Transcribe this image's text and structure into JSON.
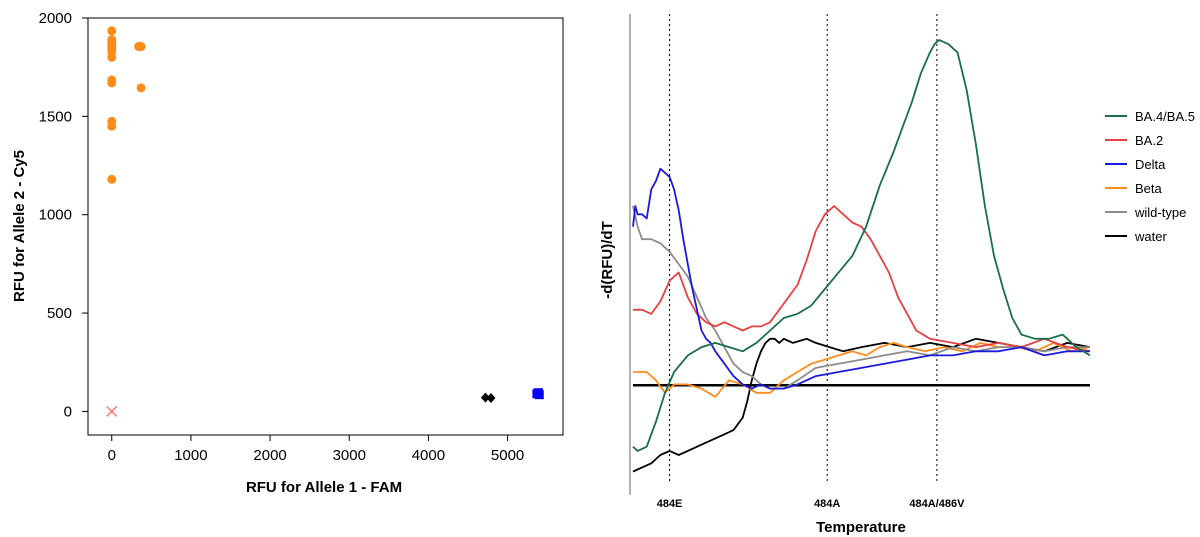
{
  "chart_data": [
    {
      "type": "scatter",
      "xlabel": "RFU for Allele 1 - FAM",
      "ylabel": "RFU for Allele 2 - Cy5",
      "xlim": [
        -300,
        5700
      ],
      "ylim": [
        -120,
        2000
      ],
      "x_ticks": [
        0,
        1000,
        2000,
        3000,
        4000,
        5000
      ],
      "y_ticks": [
        0,
        500,
        1000,
        1500,
        2000
      ],
      "grid": false,
      "series": [
        {
          "marker": "circle",
          "color": "#ff8c1a",
          "points": [
            [
              0,
              1935
            ],
            [
              0,
              1890
            ],
            [
              0,
              1870
            ],
            [
              0,
              1855
            ],
            [
              0,
              1840
            ],
            [
              0,
              1830
            ],
            [
              0,
              1800
            ],
            [
              0,
              1685
            ],
            [
              0,
              1670
            ],
            [
              0,
              1475
            ],
            [
              0,
              1450
            ],
            [
              0,
              1180
            ],
            [
              340,
              1855
            ],
            [
              370,
              1855
            ],
            [
              370,
              1645
            ]
          ]
        },
        {
          "marker": "diamond",
          "color": "#000000",
          "points": [
            [
              4720,
              70
            ],
            [
              4790,
              68
            ]
          ]
        },
        {
          "marker": "square",
          "color": "#0000ff",
          "points": [
            [
              5370,
              90
            ],
            [
              5400,
              85
            ],
            [
              5390,
              95
            ]
          ]
        },
        {
          "marker": "x",
          "color": "#ff6b6b",
          "points": [
            [
              0,
              0
            ]
          ]
        }
      ]
    },
    {
      "type": "line",
      "xlabel": "Temperature",
      "ylabel": "-d(RFU)/dT",
      "xlim": [
        0,
        100
      ],
      "ylim": [
        0,
        100
      ],
      "x_tick_labels": [],
      "y_tick_labels": [],
      "legend_position": "right",
      "vertical_markers": [
        {
          "label": "484E",
          "x": 8
        },
        {
          "label": "484A",
          "x": 42.5
        },
        {
          "label": "484A/486V",
          "x": 66.5
        }
      ],
      "baseline": 16.8,
      "series": [
        {
          "name": "BA.4/BA.5",
          "color": "#1a6e4a",
          "x": [
            0,
            1,
            3,
            5,
            7,
            9,
            12,
            15,
            18,
            21,
            24,
            27,
            30,
            33,
            36,
            39,
            42,
            45,
            48,
            51,
            54,
            57,
            59,
            61,
            63,
            65,
            66,
            67,
            68,
            69,
            71,
            73,
            75,
            77,
            79,
            81,
            83,
            85,
            88,
            91,
            94,
            97,
            100
          ],
          "y": [
            2,
            1,
            2,
            8,
            15,
            20,
            24,
            26,
            27,
            26,
            25,
            27,
            30,
            33,
            34,
            36,
            40,
            44,
            48,
            55,
            65,
            73,
            79,
            85,
            92,
            97,
            99,
            100,
            99.5,
            99,
            97,
            88,
            75,
            60,
            48,
            40,
            33,
            29,
            28,
            28,
            29,
            26,
            24
          ]
        },
        {
          "name": "BA.2",
          "color": "#e84040",
          "x": [
            0,
            2,
            4,
            6,
            8,
            10,
            12,
            14,
            16,
            18,
            20,
            22,
            24,
            26,
            28,
            30,
            32,
            34,
            36,
            38,
            40,
            42,
            44,
            46,
            48,
            50,
            52,
            54,
            56,
            58,
            60,
            62,
            65,
            70,
            75,
            80,
            85,
            90,
            95,
            100
          ],
          "y": [
            35,
            35,
            34,
            37,
            42,
            44,
            38,
            34,
            32,
            31,
            32,
            31,
            30,
            31,
            31,
            32,
            35,
            38,
            41,
            47,
            54,
            58,
            60,
            58,
            56,
            55,
            52,
            48,
            44,
            38,
            34,
            30,
            28,
            27,
            26,
            27,
            26,
            28,
            26,
            25
          ]
        },
        {
          "name": "Delta",
          "color": "#1a1adb",
          "x": [
            0,
            0.5,
            1,
            2,
            3,
            4,
            5,
            6,
            7,
            8,
            9,
            10,
            11,
            12,
            13,
            14,
            15,
            16,
            17,
            18,
            20,
            22,
            24,
            26,
            28,
            30,
            33,
            36,
            40,
            45,
            50,
            55,
            60,
            65,
            70,
            75,
            80,
            85,
            90,
            95,
            100
          ],
          "y": [
            55,
            60,
            58,
            58,
            57,
            64,
            66,
            69,
            68,
            67,
            64,
            59,
            52,
            46,
            40,
            35,
            30,
            28,
            27,
            25,
            22,
            19,
            17,
            16,
            17,
            16,
            16,
            17,
            19,
            20,
            21,
            22,
            23,
            24,
            24,
            25,
            25,
            26,
            24,
            25,
            25
          ]
        },
        {
          "name": "Beta",
          "color": "#ff8c1a",
          "x": [
            0,
            3,
            5,
            7,
            9,
            12,
            15,
            18,
            21,
            24,
            27,
            30,
            33,
            36,
            39,
            42,
            45,
            48,
            51,
            54,
            57,
            60,
            64,
            68,
            72,
            76,
            80,
            84,
            88,
            92,
            96,
            100
          ],
          "y": [
            20,
            20,
            18,
            15,
            17,
            17,
            16,
            14,
            18,
            17,
            15,
            15,
            18,
            20,
            22,
            23,
            24,
            25,
            24,
            26,
            27,
            26,
            25,
            26,
            25,
            27,
            26,
            26,
            25,
            27,
            25,
            26
          ]
        },
        {
          "name": "wild-type",
          "color": "#8c8c8c",
          "x": [
            0,
            1,
            2,
            4,
            6,
            8,
            10,
            12,
            14,
            16,
            18,
            20,
            22,
            24,
            26,
            28,
            30,
            33,
            36,
            40,
            45,
            50,
            55,
            60,
            65,
            70,
            75,
            80,
            85,
            90,
            95,
            100
          ],
          "y": [
            60,
            55,
            52,
            52,
            51,
            49,
            46,
            43,
            38,
            33,
            30,
            26,
            22,
            20,
            19,
            17,
            16,
            16,
            18,
            21,
            22,
            23,
            24,
            25,
            24,
            26,
            25,
            26,
            26,
            25,
            26,
            26
          ]
        },
        {
          "name": "water",
          "color": "#000000",
          "x": [
            0,
            2,
            4,
            6,
            8,
            10,
            12,
            14,
            16,
            18,
            20,
            22,
            24,
            25,
            26,
            27,
            28,
            29,
            30,
            31,
            32,
            33,
            35,
            38,
            40,
            43,
            46,
            50,
            55,
            60,
            65,
            70,
            75,
            80,
            85,
            90,
            95,
            100
          ],
          "y": [
            -4,
            -3,
            -2,
            0,
            1,
            0,
            1,
            2,
            3,
            4,
            5,
            6,
            9,
            13,
            18,
            22,
            25,
            27,
            28,
            28,
            27,
            28,
            27,
            28,
            27,
            26,
            25,
            26,
            27,
            26,
            27,
            26,
            28,
            27,
            26,
            25,
            27,
            26
          ]
        }
      ]
    }
  ]
}
